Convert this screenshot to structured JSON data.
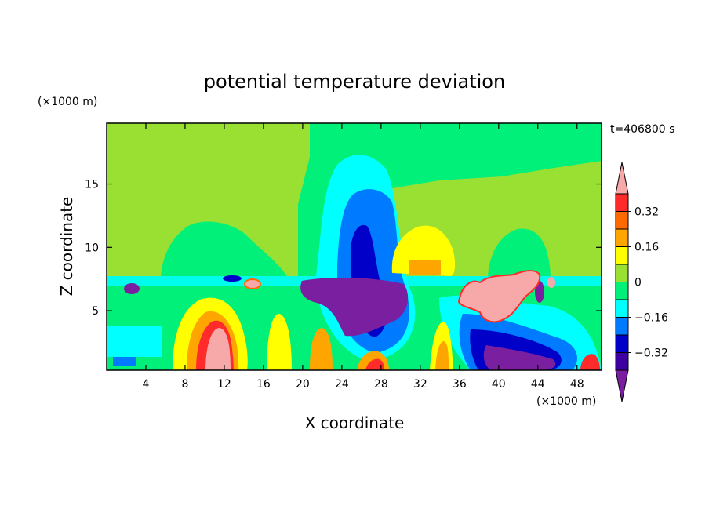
{
  "chart_data": {
    "type": "heatmap",
    "title": "potential temperature deviation",
    "xlabel": "X coordinate",
    "ylabel": "Z coordinate",
    "x_unit": "(×1000 m)",
    "y_unit": "(×1000 m)",
    "time_label": "t=406800 s",
    "xlim": [
      0,
      50.5
    ],
    "ylim": [
      0.3,
      19.8
    ],
    "x_ticks": [
      4,
      8,
      12,
      16,
      20,
      24,
      28,
      32,
      36,
      40,
      44,
      48
    ],
    "y_ticks": [
      5,
      10,
      15
    ],
    "colorbar": {
      "levels": [
        -0.4,
        -0.32,
        -0.24,
        -0.16,
        -0.08,
        0,
        0.08,
        0.16,
        0.24,
        0.32,
        0.4
      ],
      "tick_labels": [
        "0.32",
        "0.16",
        "0",
        "−0.16",
        "−0.32"
      ],
      "tick_values": [
        0.32,
        0.16,
        0,
        -0.16,
        -0.32
      ],
      "colors": {
        "over": "#f7a8a8",
        "0.32_to_0.40": "#ff2a2a",
        "0.24_to_0.32": "#ff6a00",
        "0.16_to_0.24": "#ffa500",
        "0.08_to_0.16": "#ffff00",
        "0_to_0.08": "#99e033",
        "-0.08_to_0": "#00f07a",
        "-0.16_to_-0.08": "#00ffff",
        "-0.24_to_-0.16": "#007bff",
        "-0.32_to_-0.24": "#0000c8",
        "-0.40_to_-0.32": "#3c00a0",
        "under": "#7a1fa0"
      }
    },
    "features": [
      {
        "x": 26,
        "z": 10,
        "value": -0.3
      },
      {
        "x": 11,
        "z": 2.5,
        "value": 0.42
      },
      {
        "x": 41,
        "z": 6.5,
        "value": 0.42
      },
      {
        "x": 24,
        "z": 6,
        "value": -0.42
      },
      {
        "x": 40,
        "z": 1.5,
        "value": -0.42
      },
      {
        "x": 33,
        "z": 10,
        "value": 0.14
      },
      {
        "x": 10,
        "z": 10,
        "value": -0.02
      }
    ]
  }
}
